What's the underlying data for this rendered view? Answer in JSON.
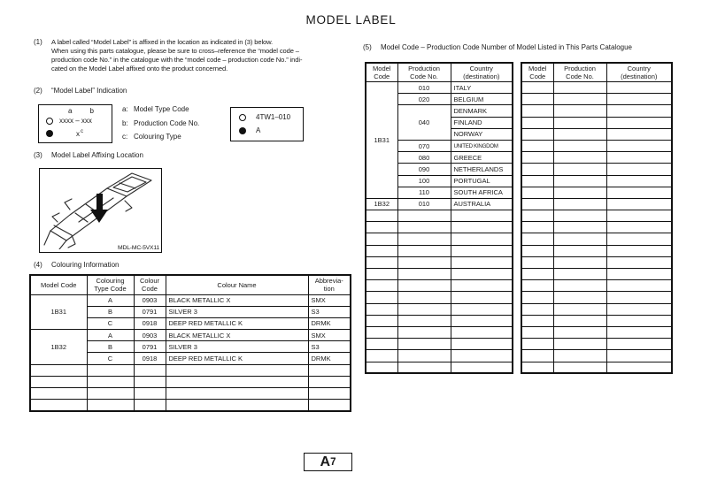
{
  "page": {
    "title": "MODEL LABEL",
    "footer_letter": "A",
    "footer_number": "7"
  },
  "sections": {
    "s1": {
      "num": "(1)",
      "lines": [
        "A label called “Model Label” is affixed in the location as indicated in (3) below.",
        "When using this parts catalogue, please be sure to cross–reference the “model code –",
        "production code No.” in the catalogue with the “model code – production code No.” indi-",
        "cated on the Model Label affixed onto the product concerned."
      ]
    },
    "s2": {
      "num": "(2)",
      "heading": "“Model Label” Indication"
    },
    "s3": {
      "num": "(3)",
      "heading": "Model Label Affixing Location"
    },
    "s4": {
      "num": "(4)",
      "heading": "Colouring Information"
    },
    "s5": {
      "num": "(5)",
      "heading": "Model Code – Production Code Number of Model Listed in This Parts Catalogue"
    }
  },
  "indication": {
    "sample": {
      "a": "a",
      "b": "b",
      "line1": "xxxx – xxx",
      "line2_x": "x",
      "line2_c": "c"
    },
    "legend": [
      {
        "key": "a:",
        "label": "Model Type Code"
      },
      {
        "key": "b:",
        "label": "Production Code No."
      },
      {
        "key": "c:",
        "label": "Colouring Type"
      }
    ],
    "example": {
      "line1": "4TW1–010",
      "line2": "A"
    }
  },
  "figure": {
    "caption": "MDL-MC-5VX11"
  },
  "colouring_table": {
    "headers": [
      "Model Code",
      "Colouring Type Code",
      "Colour Code",
      "Colour Name",
      "Abbrevia-tion"
    ],
    "groups": [
      {
        "model_code": "1B31",
        "rows": [
          [
            "A",
            "0903",
            "BLACK METALLIC X",
            "SMX"
          ],
          [
            "B",
            "0791",
            "SILVER 3",
            "S3"
          ],
          [
            "C",
            "0918",
            "DEEP RED METALLIC K",
            "DRMK"
          ]
        ]
      },
      {
        "model_code": "1B32",
        "rows": [
          [
            "A",
            "0903",
            "BLACK METALLIC X",
            "SMX"
          ],
          [
            "B",
            "0791",
            "SILVER 3",
            "S3"
          ],
          [
            "C",
            "0918",
            "DEEP RED METALLIC K",
            "DRMK"
          ]
        ]
      }
    ],
    "empty_rows": 4
  },
  "model_code_table": {
    "headers": [
      "Model Code",
      "Production Code No.",
      "Country (destination)"
    ],
    "groups": [
      {
        "model_code": "1B31",
        "rows": [
          {
            "code": "010",
            "country": "ITALY"
          },
          {
            "code": "020",
            "country": "BELGIUM"
          },
          {
            "code": "040",
            "country": "DENMARK"
          },
          {
            "country": "FINLAND"
          },
          {
            "country": "NORWAY"
          },
          {
            "code": "070",
            "country": "UNITED KINGDOM"
          },
          {
            "code": "080",
            "country": "GREECE"
          },
          {
            "code": "090",
            "country": "NETHERLANDS"
          },
          {
            "code": "100",
            "country": "PORTUGAL"
          },
          {
            "code": "110",
            "country": "SOUTH AFRICA"
          }
        ]
      },
      {
        "model_code": "1B32",
        "rows": [
          {
            "code": "010",
            "country": "AUSTRALIA"
          }
        ]
      }
    ],
    "empty_rows": 14
  },
  "blank_table": {
    "headers": [
      "Model Code",
      "Production Code No.",
      "Country (destination)"
    ],
    "empty_rows": 25
  }
}
